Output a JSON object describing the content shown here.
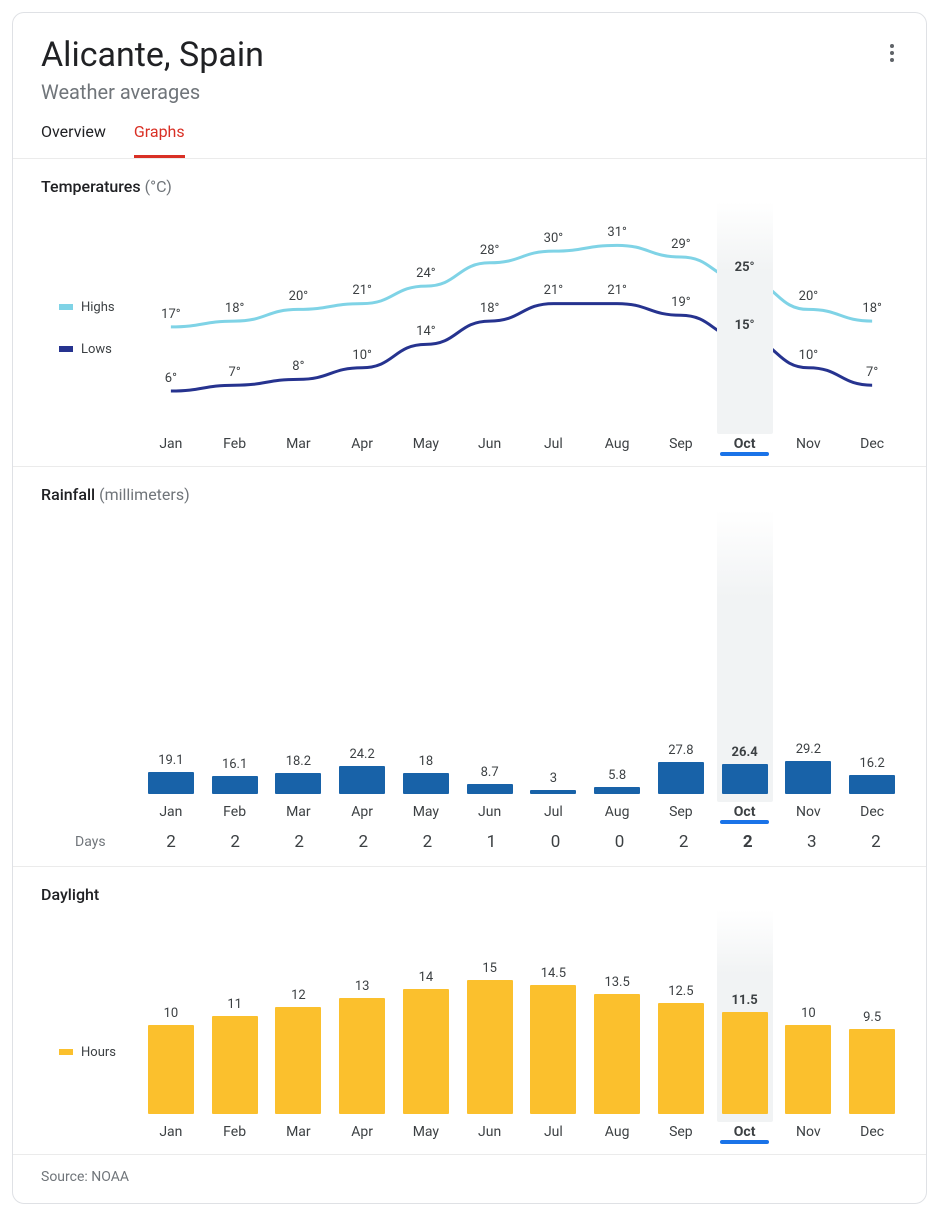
{
  "header": {
    "title": "Alicante, Spain",
    "subtitle": "Weather averages"
  },
  "tabs": {
    "overview": "Overview",
    "graphs": "Graphs",
    "active": "graphs"
  },
  "months": [
    "Jan",
    "Feb",
    "Mar",
    "Apr",
    "May",
    "Jun",
    "Jul",
    "Aug",
    "Sep",
    "Oct",
    "Nov",
    "Dec"
  ],
  "selected_month_index": 9,
  "colors": {
    "high_line": "#7fd3e6",
    "low_line": "#26338f",
    "rain_bar": "#1862a8",
    "daylight_bar": "#fbc02d",
    "selected_underline": "#1a73e8",
    "text": "#3c4043",
    "muted": "#70757a",
    "border": "#ebebeb",
    "sel_bg": "#f1f3f4"
  },
  "temperature": {
    "title": "Temperatures",
    "unit": "(°C)",
    "legend_high": "Highs",
    "legend_low": "Lows",
    "highs": [
      17,
      18,
      20,
      21,
      24,
      28,
      30,
      31,
      29,
      25,
      20,
      18
    ],
    "lows": [
      6,
      7,
      8,
      10,
      14,
      18,
      21,
      21,
      19,
      15,
      10,
      7
    ],
    "label_suffix": "°",
    "y_min": 0,
    "y_max": 35,
    "line_width": 3,
    "label_fontsize": 13
  },
  "rainfall": {
    "title": "Rainfall",
    "unit": "(millimeters)",
    "values": [
      19.1,
      16.1,
      18.2,
      24.2,
      18,
      8.7,
      3,
      5.8,
      27.8,
      26.4,
      29.2,
      16.2
    ],
    "y_max_for_bars": 220,
    "days_label": "Days",
    "days": [
      2,
      2,
      2,
      2,
      2,
      1,
      0,
      0,
      2,
      2,
      3,
      2
    ],
    "bar_color": "#1862a8",
    "label_fontsize": 13
  },
  "daylight": {
    "title": "Daylight",
    "legend_hours": "Hours",
    "values": [
      10,
      11,
      12,
      13,
      14,
      15,
      14.5,
      13.5,
      12.5,
      11.5,
      10,
      9.5
    ],
    "y_max": 18,
    "bar_color": "#fbc02d",
    "label_fontsize": 13
  },
  "footer": {
    "source_label": "Source:",
    "source_name": "NOAA"
  }
}
